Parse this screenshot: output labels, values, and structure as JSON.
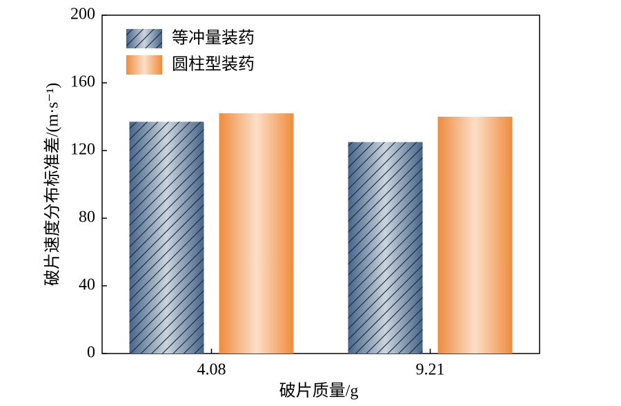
{
  "chart_data": {
    "type": "bar",
    "x_label": "破片质量/g",
    "y_label": "破片速度分布标准差/(m·s⁻¹)",
    "categories": [
      "4.08",
      "9.21"
    ],
    "series": [
      {
        "name": "等冲量装药",
        "color": "#46658a",
        "hatch": true,
        "values": [
          137,
          125
        ]
      },
      {
        "name": "圆柱型装药",
        "color": "#ef8c3b",
        "hatch": false,
        "values": [
          142,
          140
        ]
      }
    ],
    "ylim": [
      0,
      200
    ],
    "yticks": [
      0,
      40,
      80,
      120,
      160,
      200
    ],
    "legend": "upper left"
  }
}
